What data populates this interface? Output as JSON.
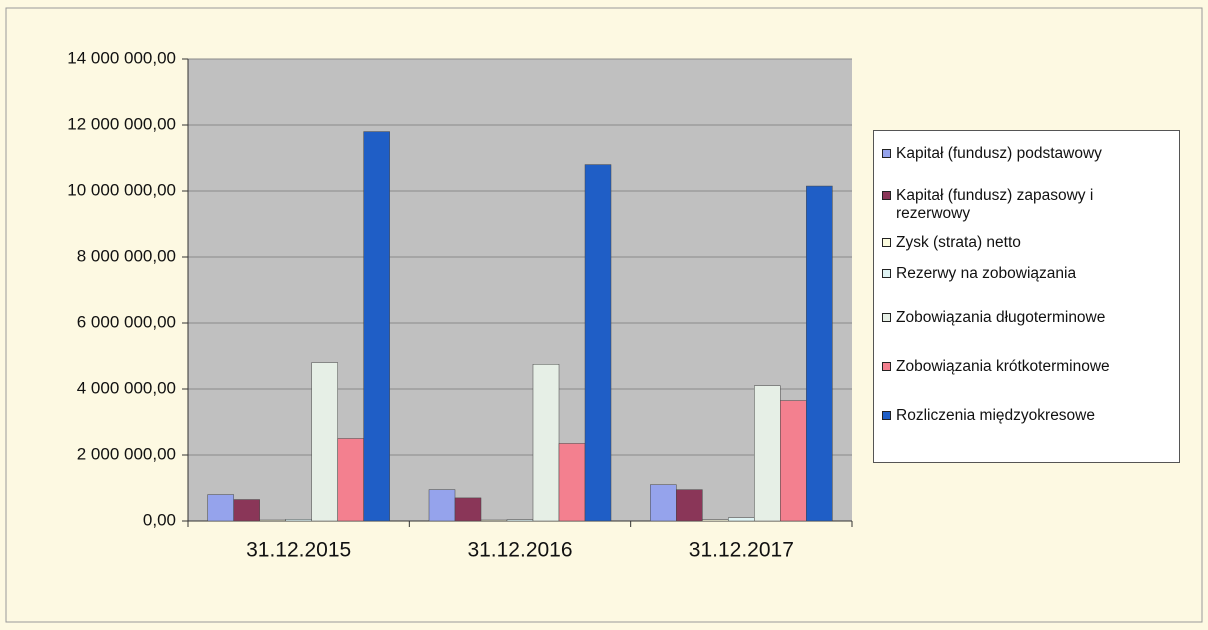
{
  "chart_data": {
    "type": "bar",
    "categories": [
      "31.12.2015",
      "31.12.2016",
      "31.12.2017"
    ],
    "series": [
      {
        "name": "Kapitał (fundusz) podstawowy",
        "color": "#95a3ec",
        "values": [
          800000,
          950000,
          1100000
        ]
      },
      {
        "name": "Kapitał (fundusz) zapasowy i rezerwowy",
        "color": "#8a3658",
        "values": [
          650000,
          700000,
          950000
        ]
      },
      {
        "name": "Zysk (strata) netto",
        "color": "#fbfbde",
        "values": [
          30000,
          30000,
          40000
        ]
      },
      {
        "name": "Rezerwy na zobowiązania",
        "color": "#dff3f3",
        "values": [
          50000,
          40000,
          100000
        ]
      },
      {
        "name": "Zobowiązania długoterminowe",
        "color": "#e6efe6",
        "values": [
          4800000,
          4750000,
          4100000
        ]
      },
      {
        "name": "Zobowiązania krótkoterminowe",
        "color": "#f3808f",
        "values": [
          2500000,
          2350000,
          3650000
        ]
      },
      {
        "name": "Rozliczenia międzyokresowe",
        "color": "#1f5ec6",
        "values": [
          11800000,
          10800000,
          10150000
        ]
      }
    ],
    "ylim": [
      0,
      14000000
    ],
    "yticks": [
      {
        "value": 0,
        "label": "0,00"
      },
      {
        "value": 2000000,
        "label": "2 000 000,00"
      },
      {
        "value": 4000000,
        "label": "4 000 000,00"
      },
      {
        "value": 6000000,
        "label": "6 000 000,00"
      },
      {
        "value": 8000000,
        "label": "8 000 000,00"
      },
      {
        "value": 10000000,
        "label": "10 000 000,00"
      },
      {
        "value": 12000000,
        "label": "12 000 000,00"
      },
      {
        "value": 14000000,
        "label": "14 000 000,00"
      }
    ],
    "grid": true
  }
}
